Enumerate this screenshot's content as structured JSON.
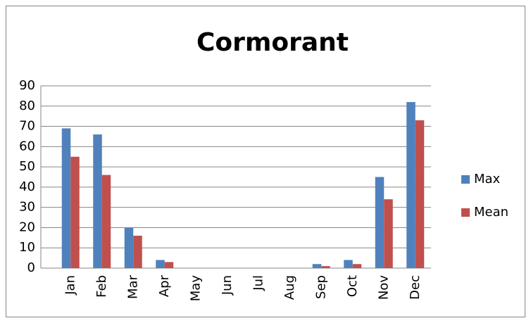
{
  "chart_data": {
    "type": "bar",
    "title": "Cormorant",
    "categories": [
      "Jan",
      "Feb",
      "Mar",
      "Apr",
      "May",
      "Jun",
      "Jul",
      "Aug",
      "Sep",
      "Oct",
      "Nov",
      "Dec"
    ],
    "series": [
      {
        "name": "Max",
        "color": "#4f81bd",
        "values": [
          69,
          66,
          20,
          4,
          0,
          0,
          0,
          0,
          2,
          4,
          45,
          82
        ]
      },
      {
        "name": "Mean",
        "color": "#c0504d",
        "values": [
          55,
          46,
          16,
          3,
          0,
          0,
          0,
          0,
          1,
          2,
          34,
          73
        ]
      }
    ],
    "ylim": [
      0,
      90
    ],
    "yticks": [
      0,
      10,
      20,
      30,
      40,
      50,
      60,
      70,
      80,
      90
    ],
    "grid": true,
    "legend": "right"
  }
}
